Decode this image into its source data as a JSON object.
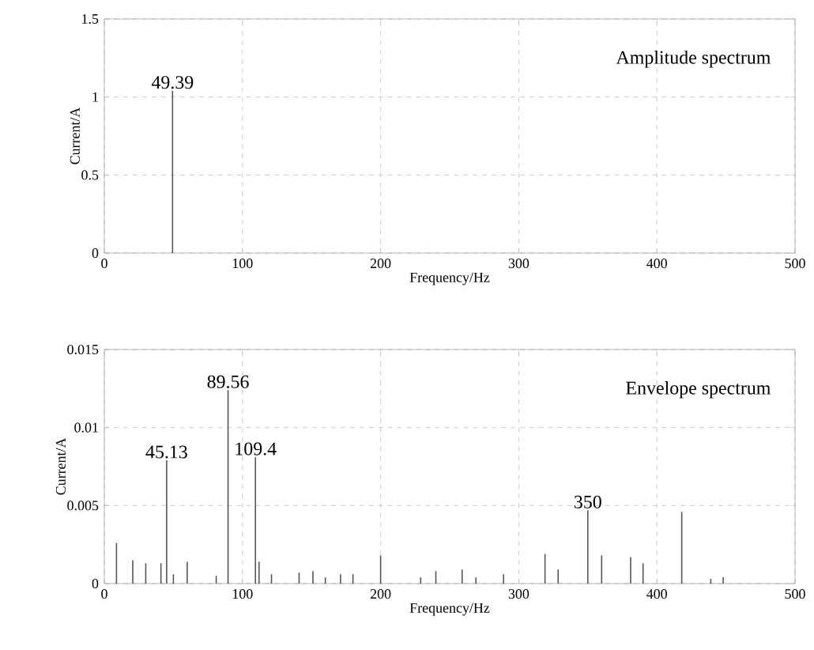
{
  "chart_data": [
    {
      "type": "bar",
      "xlabel": "Frequency/Hz",
      "ylabel": "Current/A",
      "x": [
        49.39
      ],
      "values": [
        1.04
      ],
      "color": "#555555",
      "xlim": [
        0,
        500
      ],
      "xticks": [
        0,
        100,
        200,
        300,
        400,
        500
      ],
      "ylim": [
        0,
        1.5
      ],
      "yticks": [
        0,
        0.5,
        1,
        1.5
      ],
      "grid": true,
      "annotations": [
        {
          "text": "49.39",
          "x": 49.39,
          "y": 1.04
        },
        "Amplitude spectrum"
      ]
    },
    {
      "type": "bar",
      "xlabel": "Frequency/Hz",
      "ylabel": "Current/A",
      "x": [
        8.8,
        20.6,
        30,
        41,
        45.13,
        50,
        60,
        81,
        89.56,
        109.4,
        112,
        121,
        141,
        151,
        160,
        171,
        180,
        200,
        229,
        240,
        259,
        269,
        289,
        319,
        328.5,
        350,
        360,
        381,
        390,
        418,
        439,
        448
      ],
      "values": [
        0.0026,
        0.0015,
        0.0013,
        0.0013,
        0.0079,
        0.0006,
        0.0014,
        0.0005,
        0.0124,
        0.0081,
        0.0014,
        0.0006,
        0.0007,
        0.0008,
        0.0004,
        0.0006,
        0.0006,
        0.0018,
        0.0004,
        0.0008,
        0.0009,
        0.0004,
        0.0006,
        0.0019,
        0.0009,
        0.0047,
        0.0018,
        0.0017,
        0.0013,
        0.0046,
        0.0003,
        0.0004
      ],
      "color": "#555555",
      "xlim": [
        0,
        500
      ],
      "xticks": [
        0,
        100,
        200,
        300,
        400,
        500
      ],
      "ylim": [
        0,
        0.015
      ],
      "yticks": [
        0,
        0.005,
        0.01,
        0.015
      ],
      "grid": true,
      "annotations": [
        {
          "text": "45.13",
          "x": 45.13,
          "y": 0.0079
        },
        {
          "text": "89.56",
          "x": 89.56,
          "y": 0.0124
        },
        {
          "text": "109.4",
          "x": 109.4,
          "y": 0.0081
        },
        {
          "text": "350",
          "x": 350,
          "y": 0.0047
        },
        "Envelope spectrum"
      ]
    }
  ]
}
